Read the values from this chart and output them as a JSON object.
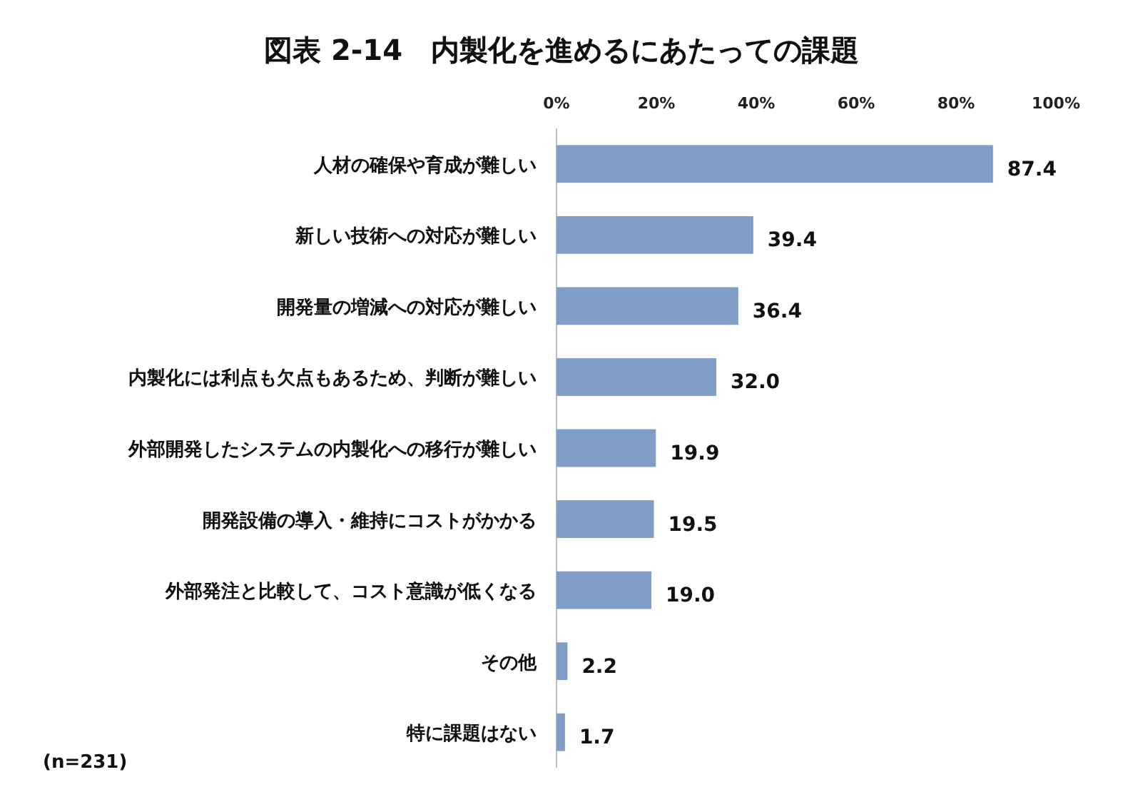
{
  "chart_data": {
    "type": "bar",
    "orientation": "horizontal",
    "title": "図表 2-14　内製化を進めるにあたっての課題",
    "categories": [
      "人材の確保や育成が難しい",
      "新しい技術への対応が難しい",
      "開発量の増減への対応が難しい",
      "内製化には利点も欠点もあるため、判断が難しい",
      "外部開発したシステムの内製化への移行が難しい",
      "開発設備の導入・維持にコストがかかる",
      "外部発注と比較して、コスト意識が低くなる",
      "その他",
      "特に課題はない"
    ],
    "values": [
      87.4,
      39.4,
      36.4,
      32.0,
      19.9,
      19.5,
      19.0,
      2.2,
      1.7
    ],
    "value_labels": [
      "87.4",
      "39.4",
      "36.4",
      "32.0",
      "19.9",
      "19.5",
      "19.0",
      "2.2",
      "1.7"
    ],
    "color": "#7f9dc5",
    "xlim": [
      0,
      100
    ],
    "xticks": [
      {
        "value": 0,
        "label": "0%"
      },
      {
        "value": 20,
        "label": "20%"
      },
      {
        "value": 40,
        "label": "40%"
      },
      {
        "value": 60,
        "label": "60%"
      },
      {
        "value": 80,
        "label": "80%"
      },
      {
        "value": 100,
        "label": "100%"
      }
    ],
    "annotations": [
      "(n=231)"
    ]
  }
}
